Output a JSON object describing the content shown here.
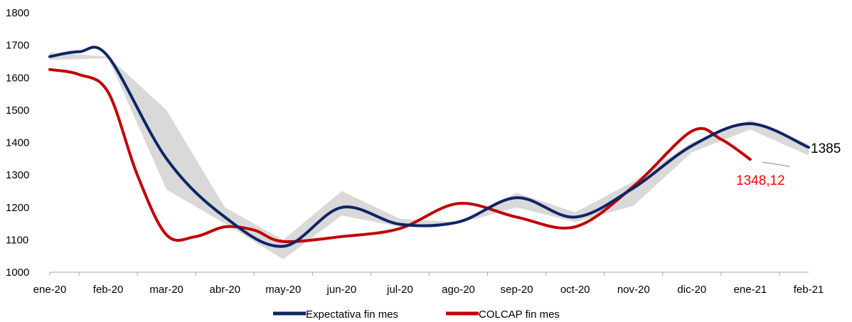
{
  "chart_data": {
    "type": "line",
    "categories": [
      "ene-20",
      "feb-20",
      "mar-20",
      "abr-20",
      "may-20",
      "jun-20",
      "jul-20",
      "ago-20",
      "sep-20",
      "oct-20",
      "nov-20",
      "dic-20",
      "ene-21",
      "feb-21"
    ],
    "ylim": [
      1000,
      1800
    ],
    "yticks": [
      1000,
      1100,
      1200,
      1300,
      1400,
      1500,
      1600,
      1700,
      1800
    ],
    "legend_position": "bottom",
    "grid": false,
    "band": {
      "x": [
        0,
        1,
        2,
        3,
        4,
        5,
        6,
        7,
        8,
        9,
        10,
        11,
        12,
        13
      ],
      "upper": [
        1678,
        1665,
        1500,
        1200,
        1100,
        1250,
        1165,
        1155,
        1245,
        1185,
        1280,
        1400,
        1470,
        1395
      ],
      "lower": [
        1655,
        1660,
        1255,
        1150,
        1040,
        1175,
        1140,
        1150,
        1200,
        1155,
        1205,
        1370,
        1440,
        1360
      ]
    },
    "series": [
      {
        "name": "Expectativa fin mes",
        "color": "#0d2565",
        "x": [
          0,
          0.5,
          1,
          2,
          3,
          4,
          5,
          6,
          7,
          8,
          9,
          10,
          11,
          12,
          13
        ],
        "values": [
          1665,
          1680,
          1665,
          1350,
          1170,
          1080,
          1200,
          1148,
          1155,
          1230,
          1170,
          1260,
          1390,
          1458,
          1385
        ]
      },
      {
        "name": "COLCAP fin mes",
        "color": "#c00000",
        "x": [
          0,
          0.5,
          1,
          1.5,
          2,
          2.5,
          3,
          3.5,
          4,
          5,
          6,
          7,
          8,
          9,
          10,
          11,
          11.5,
          12
        ],
        "values": [
          1625,
          1610,
          1555,
          1300,
          1115,
          1110,
          1140,
          1130,
          1095,
          1110,
          1135,
          1212,
          1170,
          1140,
          1265,
          1435,
          1410,
          1348
        ]
      }
    ],
    "annotations": [
      {
        "text": "1385",
        "color": "#000000"
      },
      {
        "text": "1348,12",
        "color": "#ff0000"
      }
    ]
  }
}
